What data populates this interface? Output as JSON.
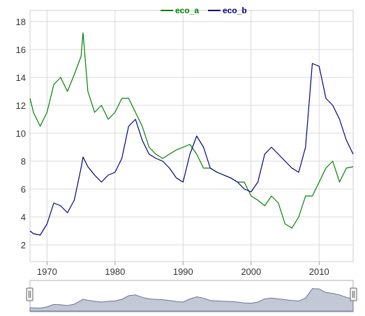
{
  "chart_data": {
    "type": "line",
    "x_ticks": [
      1970,
      1980,
      1990,
      2000,
      2010
    ],
    "y_ticks": [
      2,
      4,
      6,
      8,
      10,
      12,
      14,
      16,
      18
    ],
    "xlim": [
      1967.5,
      2015
    ],
    "ylim": [
      0.8,
      18.8
    ],
    "grid": true,
    "legend_position": "top-center",
    "x": [
      1967.5,
      1968,
      1969,
      1970,
      1971,
      1972,
      1973,
      1974,
      1975,
      1975.3,
      1976,
      1977,
      1978,
      1979,
      1980,
      1981,
      1982,
      1983,
      1984,
      1985,
      1986,
      1987,
      1988,
      1989,
      1990,
      1991,
      1992,
      1993,
      1994,
      1995,
      1996,
      1997,
      1998,
      1999,
      2000,
      2001,
      2002,
      2003,
      2004,
      2005,
      2006,
      2007,
      2008,
      2009,
      2010,
      2011,
      2012,
      2013,
      2014,
      2015
    ],
    "series": [
      {
        "name": "eco_a",
        "color": "#008000",
        "values": [
          12.5,
          11.5,
          10.5,
          11.5,
          13.5,
          14.0,
          13.0,
          14.2,
          15.5,
          17.2,
          13.0,
          11.5,
          12.0,
          11.0,
          11.5,
          12.5,
          12.5,
          11.5,
          10.5,
          9.0,
          8.5,
          8.2,
          8.5,
          8.8,
          9.0,
          9.2,
          8.5,
          7.5,
          7.5,
          7.2,
          7.0,
          6.8,
          6.5,
          6.5,
          5.5,
          5.2,
          4.8,
          5.5,
          5.0,
          3.5,
          3.2,
          4.0,
          5.5,
          5.5,
          6.5,
          7.5,
          8.0,
          6.5,
          7.5,
          7.6
        ]
      },
      {
        "name": "eco_b",
        "color": "#00007f",
        "values": [
          3.0,
          2.8,
          2.7,
          3.5,
          5.0,
          4.8,
          4.3,
          5.2,
          7.5,
          8.3,
          7.6,
          7.0,
          6.5,
          7.0,
          7.2,
          8.2,
          10.5,
          11.0,
          9.5,
          8.5,
          8.2,
          8.0,
          7.5,
          6.8,
          6.5,
          8.5,
          9.8,
          9.0,
          7.5,
          7.2,
          7.0,
          6.8,
          6.5,
          6.0,
          5.8,
          6.5,
          8.5,
          9.0,
          8.5,
          8.0,
          7.5,
          7.2,
          9.0,
          15.0,
          14.8,
          12.5,
          12.0,
          11.0,
          9.5,
          8.5
        ]
      }
    ]
  },
  "colors": {
    "navigator_fill": "#c2c8d6",
    "navigator_line": "#6b7593",
    "grid": "#d8d8d8"
  }
}
